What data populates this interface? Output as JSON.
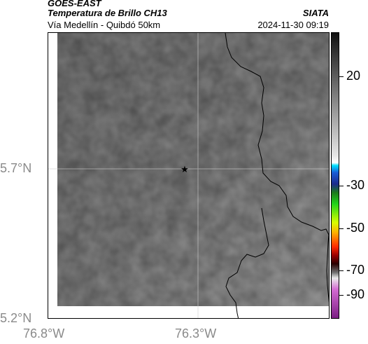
{
  "header": {
    "satellite": "GOES-EAST",
    "product": "Temperatura de Brillo CH13",
    "region": "Vía Medellín - Quibdó 50km",
    "source": "SIATA",
    "datetime": "2024-11-30 09:19"
  },
  "map": {
    "lat_ticks": [
      "5.7°N",
      "5.2°N"
    ],
    "lon_ticks": [
      "76.8°W",
      "76.3°W"
    ],
    "marker_icon": "star-icon",
    "background_color": "#6f6f6f"
  },
  "colorbar": {
    "labels": [
      "20",
      "-30",
      "-50",
      "-70",
      "-90"
    ]
  }
}
